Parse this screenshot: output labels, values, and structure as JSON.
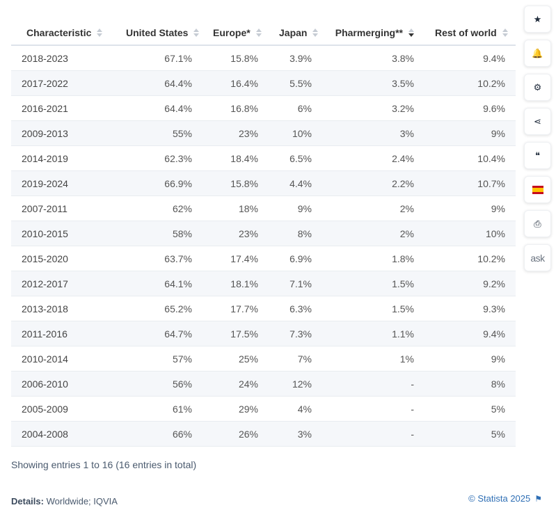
{
  "chart_data": {
    "type": "table",
    "columns": [
      {
        "label": "Characteristic",
        "sorted": ""
      },
      {
        "label": "United States",
        "sorted": ""
      },
      {
        "label": "Europe*",
        "sorted": ""
      },
      {
        "label": "Japan",
        "sorted": ""
      },
      {
        "label": "Pharmerging**",
        "sorted": "desc"
      },
      {
        "label": "Rest of world",
        "sorted": ""
      }
    ],
    "rows": [
      [
        "2018-2023",
        "67.1%",
        "15.8%",
        "3.9%",
        "3.8%",
        "9.4%"
      ],
      [
        "2017-2022",
        "64.4%",
        "16.4%",
        "5.5%",
        "3.5%",
        "10.2%"
      ],
      [
        "2016-2021",
        "64.4%",
        "16.8%",
        "6%",
        "3.2%",
        "9.6%"
      ],
      [
        "2009-2013",
        "55%",
        "23%",
        "10%",
        "3%",
        "9%"
      ],
      [
        "2014-2019",
        "62.3%",
        "18.4%",
        "6.5%",
        "2.4%",
        "10.4%"
      ],
      [
        "2019-2024",
        "66.9%",
        "15.8%",
        "4.4%",
        "2.2%",
        "10.7%"
      ],
      [
        "2007-2011",
        "62%",
        "18%",
        "9%",
        "2%",
        "9%"
      ],
      [
        "2010-2015",
        "58%",
        "23%",
        "8%",
        "2%",
        "10%"
      ],
      [
        "2015-2020",
        "63.7%",
        "17.4%",
        "6.9%",
        "1.8%",
        "10.2%"
      ],
      [
        "2012-2017",
        "64.1%",
        "18.1%",
        "7.1%",
        "1.5%",
        "9.2%"
      ],
      [
        "2013-2018",
        "65.2%",
        "17.7%",
        "6.3%",
        "1.5%",
        "9.3%"
      ],
      [
        "2011-2016",
        "64.7%",
        "17.5%",
        "7.3%",
        "1.1%",
        "9.4%"
      ],
      [
        "2010-2014",
        "57%",
        "25%",
        "7%",
        "1%",
        "9%"
      ],
      [
        "2006-2010",
        "56%",
        "24%",
        "12%",
        "-",
        "8%"
      ],
      [
        "2005-2009",
        "61%",
        "29%",
        "4%",
        "-",
        "5%"
      ],
      [
        "2004-2008",
        "66%",
        "26%",
        "3%",
        "-",
        "5%"
      ]
    ]
  },
  "footer": {
    "summary": "Showing entries 1 to 16 (16 entries in total)",
    "details_label": "Details:",
    "details_value": "Worldwide; IQVIA",
    "copyright": "© Statista 2025"
  },
  "sidebar": {
    "buttons": [
      {
        "name": "favorite-button",
        "icon": "star-icon",
        "glyph": "★"
      },
      {
        "name": "notification-button",
        "icon": "bell-icon",
        "glyph": "🔔"
      },
      {
        "name": "settings-button",
        "icon": "gear-icon",
        "glyph": "⚙"
      },
      {
        "name": "share-button",
        "icon": "share-icon",
        "glyph": "⋖"
      },
      {
        "name": "cite-button",
        "icon": "quote-icon",
        "glyph": "❝"
      },
      {
        "name": "language-button",
        "icon": "spanish-flag-icon",
        "glyph": ""
      },
      {
        "name": "print-button",
        "icon": "print-icon",
        "glyph": "⎙"
      },
      {
        "name": "ask-button",
        "icon": "ask-icon",
        "glyph": "ask"
      }
    ]
  }
}
